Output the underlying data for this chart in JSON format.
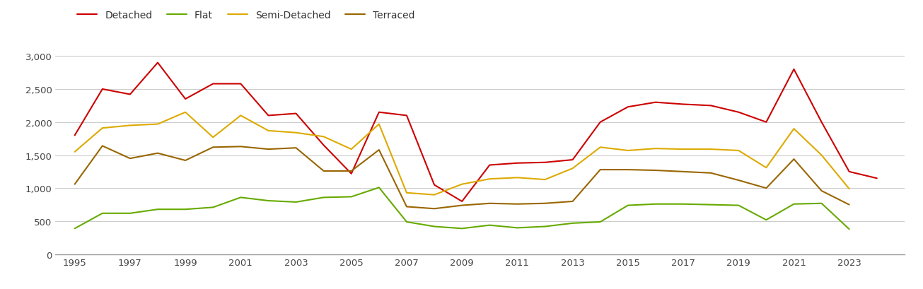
{
  "years": [
    1995,
    1996,
    1997,
    1998,
    1999,
    2000,
    2001,
    2002,
    2003,
    2004,
    2005,
    2006,
    2007,
    2008,
    2009,
    2010,
    2011,
    2012,
    2013,
    2014,
    2015,
    2016,
    2017,
    2018,
    2019,
    2020,
    2021,
    2022,
    2023,
    2024
  ],
  "detached": [
    1800,
    2500,
    2420,
    2900,
    2350,
    2580,
    2580,
    2100,
    2130,
    1650,
    1220,
    2150,
    2100,
    1050,
    800,
    1350,
    1380,
    1390,
    1430,
    2000,
    2230,
    2300,
    2270,
    2250,
    2150,
    2000,
    2800,
    2000,
    1250,
    1150
  ],
  "flat": [
    390,
    620,
    620,
    680,
    680,
    710,
    860,
    810,
    790,
    860,
    870,
    1010,
    490,
    420,
    390,
    440,
    400,
    420,
    470,
    490,
    740,
    760,
    760,
    750,
    740,
    520,
    760,
    770,
    380,
    null
  ],
  "semi_detached": [
    1550,
    1910,
    1950,
    1970,
    2150,
    1770,
    2100,
    1870,
    1840,
    1780,
    1590,
    1970,
    930,
    900,
    1060,
    1140,
    1160,
    1130,
    1300,
    1620,
    1570,
    1600,
    1590,
    1590,
    1570,
    1310,
    1900,
    1500,
    990,
    null
  ],
  "terraced": [
    1060,
    1640,
    1450,
    1530,
    1420,
    1620,
    1630,
    1590,
    1610,
    1260,
    1260,
    1580,
    720,
    690,
    740,
    770,
    760,
    770,
    800,
    1280,
    1280,
    1270,
    1250,
    1230,
    1120,
    1000,
    1440,
    960,
    750,
    null
  ],
  "series": {
    "Detached": {
      "color": "#cc0000",
      "linewidth": 1.5
    },
    "Flat": {
      "color": "#66aa00",
      "linewidth": 1.5
    },
    "Semi-Detached": {
      "color": "#ddaa00",
      "linewidth": 1.5
    },
    "Terraced": {
      "color": "#996600",
      "linewidth": 1.5
    }
  },
  "ylim": [
    0,
    3200
  ],
  "yticks": [
    0,
    500,
    1000,
    1500,
    2000,
    2500,
    3000
  ],
  "ytick_labels": [
    "0",
    "500",
    "1,000",
    "1,500",
    "2,000",
    "2,500",
    "3,000"
  ],
  "xticks": [
    1995,
    1997,
    1999,
    2001,
    2003,
    2005,
    2007,
    2009,
    2011,
    2013,
    2015,
    2017,
    2019,
    2021,
    2023
  ],
  "xlim_left": 1994.3,
  "xlim_right": 2025.0,
  "background_color": "#ffffff",
  "grid_color": "#cccccc",
  "legend_labels": [
    "Detached",
    "Flat",
    "Semi-Detached",
    "Terraced"
  ]
}
